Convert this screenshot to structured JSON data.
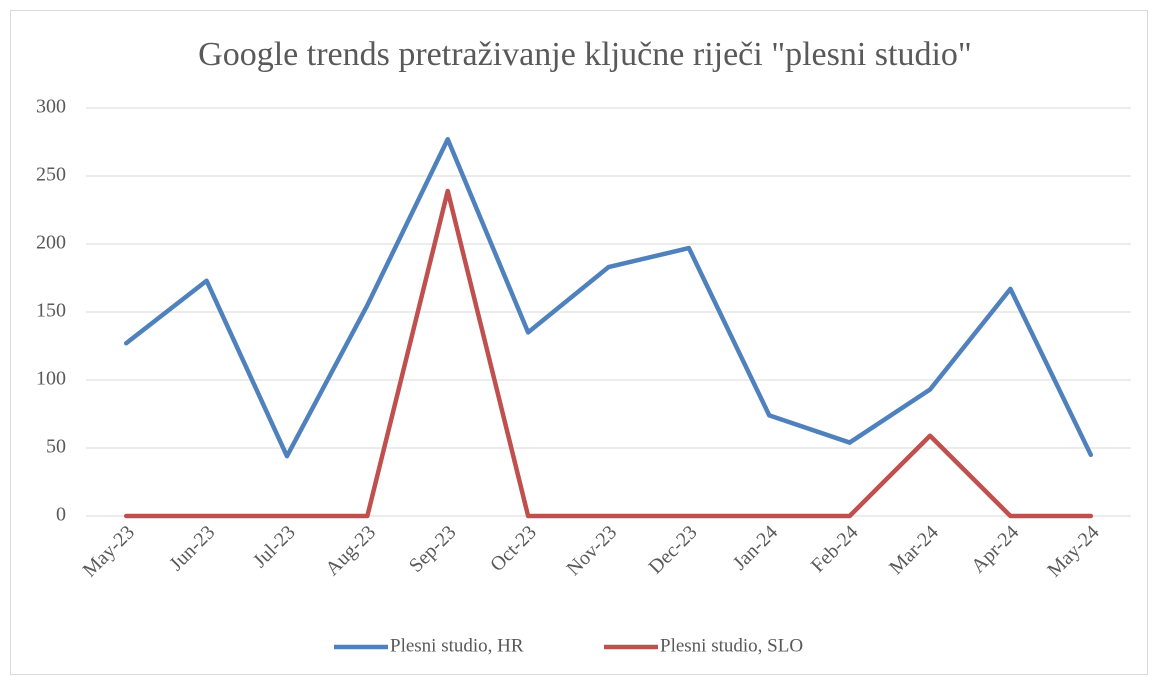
{
  "chart_data": {
    "type": "line",
    "title": "Google trends pretraživanje ključne riječi \"plesni studio\"",
    "categories": [
      "May-23",
      "Jun-23",
      "Jul-23",
      "Aug-23",
      "Sep-23",
      "Oct-23",
      "Nov-23",
      "Dec-23",
      "Jan-24",
      "Feb-24",
      "Mar-24",
      "Apr-24",
      "May-24"
    ],
    "series": [
      {
        "name": "Plesni studio, HR",
        "color": "#4f81bd",
        "values": [
          127,
          173,
          44,
          155,
          277,
          135,
          183,
          197,
          74,
          54,
          93,
          167,
          45
        ]
      },
      {
        "name": "Plesni studio, SLO",
        "color": "#c0504d",
        "values": [
          0,
          0,
          0,
          0,
          239,
          0,
          0,
          0,
          0,
          0,
          59,
          0,
          0
        ]
      }
    ],
    "ylim": [
      0,
      300
    ],
    "yticks": [
      0,
      50,
      100,
      150,
      200,
      250,
      300
    ],
    "grid": true,
    "legend": "bottom"
  }
}
